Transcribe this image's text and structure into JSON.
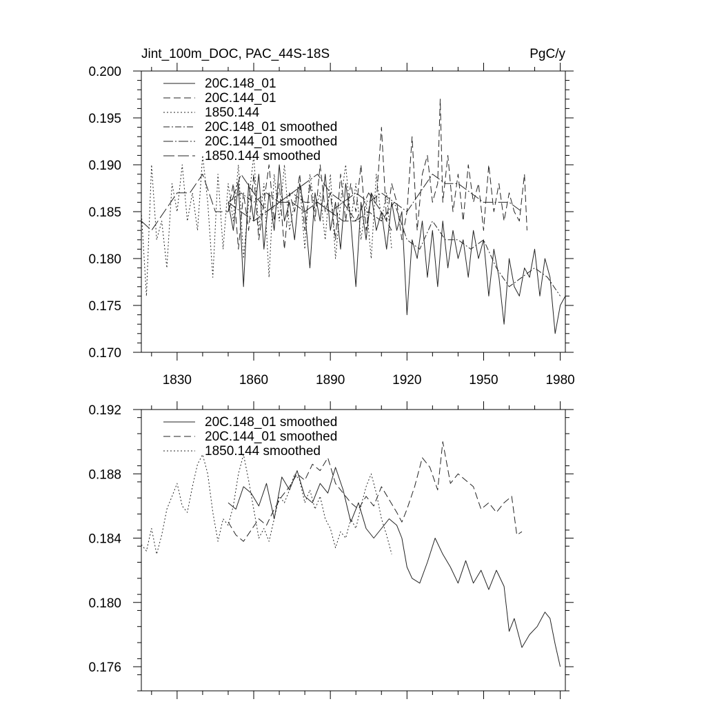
{
  "chart_data": [
    {
      "type": "line",
      "title": "Jint_100m_DOC, PAC_44S-18S",
      "units": "PgC/y",
      "xlabel": "",
      "ylabel": "",
      "xlim": [
        1816,
        1982
      ],
      "ylim": [
        0.17,
        0.2
      ],
      "xticks": [
        1830,
        1860,
        1890,
        1920,
        1950,
        1980
      ],
      "yticks": [
        0.17,
        0.175,
        0.18,
        0.185,
        0.19,
        0.195,
        0.2
      ],
      "ytick_labels": [
        "0.170",
        "0.175",
        "0.180",
        "0.185",
        "0.190",
        "0.195",
        "0.200"
      ],
      "legend": {
        "placement": "top-left"
      },
      "series": [
        {
          "name": "20C.148_01",
          "style": "solid",
          "x": [
            1850,
            1852,
            1854,
            1856,
            1858,
            1860,
            1862,
            1864,
            1866,
            1868,
            1870,
            1872,
            1874,
            1876,
            1878,
            1880,
            1882,
            1884,
            1886,
            1888,
            1890,
            1892,
            1894,
            1896,
            1898,
            1900,
            1902,
            1904,
            1906,
            1908,
            1910,
            1912,
            1914,
            1916,
            1918,
            1920,
            1922,
            1924,
            1926,
            1928,
            1930,
            1932,
            1934,
            1936,
            1938,
            1940,
            1942,
            1944,
            1946,
            1948,
            1950,
            1952,
            1954,
            1956,
            1958,
            1960,
            1962,
            1964,
            1966,
            1968,
            1970,
            1972,
            1974,
            1976,
            1978,
            1980,
            1982
          ],
          "y": [
            0.186,
            0.183,
            0.188,
            0.177,
            0.188,
            0.184,
            0.189,
            0.181,
            0.187,
            0.183,
            0.19,
            0.184,
            0.186,
            0.182,
            0.188,
            0.185,
            0.179,
            0.187,
            0.184,
            0.189,
            0.183,
            0.186,
            0.181,
            0.188,
            0.184,
            0.177,
            0.186,
            0.182,
            0.187,
            0.183,
            0.185,
            0.181,
            0.186,
            0.183,
            0.185,
            0.174,
            0.182,
            0.18,
            0.184,
            0.178,
            0.183,
            0.177,
            0.184,
            0.179,
            0.183,
            0.18,
            0.182,
            0.178,
            0.183,
            0.18,
            0.182,
            0.176,
            0.181,
            0.178,
            0.173,
            0.18,
            0.177,
            0.176,
            0.179,
            0.178,
            0.181,
            0.176,
            0.18,
            0.178,
            0.172,
            0.175,
            0.176
          ]
        },
        {
          "name": "20C.144_01",
          "style": "dashed",
          "x": [
            1850,
            1852,
            1854,
            1856,
            1858,
            1860,
            1862,
            1864,
            1866,
            1868,
            1870,
            1872,
            1874,
            1876,
            1878,
            1880,
            1882,
            1884,
            1886,
            1888,
            1890,
            1892,
            1894,
            1896,
            1898,
            1900,
            1902,
            1904,
            1906,
            1908,
            1910,
            1912,
            1914,
            1916,
            1918,
            1920,
            1922,
            1924,
            1926,
            1928,
            1930,
            1932,
            1933,
            1934,
            1936,
            1938,
            1940,
            1942,
            1944,
            1946,
            1948,
            1950,
            1952,
            1954,
            1956,
            1958,
            1960,
            1962,
            1964,
            1966,
            1967
          ],
          "y": [
            0.185,
            0.188,
            0.181,
            0.187,
            0.183,
            0.189,
            0.182,
            0.186,
            0.19,
            0.184,
            0.188,
            0.181,
            0.187,
            0.185,
            0.189,
            0.183,
            0.188,
            0.184,
            0.19,
            0.185,
            0.187,
            0.182,
            0.189,
            0.184,
            0.188,
            0.185,
            0.19,
            0.183,
            0.187,
            0.186,
            0.194,
            0.184,
            0.188,
            0.186,
            0.182,
            0.185,
            0.193,
            0.183,
            0.189,
            0.191,
            0.186,
            0.188,
            0.197,
            0.186,
            0.191,
            0.185,
            0.189,
            0.184,
            0.19,
            0.186,
            0.188,
            0.183,
            0.19,
            0.185,
            0.188,
            0.184,
            0.187,
            0.185,
            0.184,
            0.189,
            0.183
          ]
        },
        {
          "name": "1850.144",
          "style": "dotted",
          "x": [
            1816,
            1818,
            1820,
            1822,
            1824,
            1826,
            1828,
            1830,
            1832,
            1834,
            1836,
            1838,
            1840,
            1842,
            1844,
            1846,
            1848,
            1850,
            1852,
            1854,
            1856,
            1858,
            1860,
            1862,
            1864,
            1866,
            1868,
            1870,
            1872,
            1874,
            1876,
            1878,
            1880,
            1882,
            1884,
            1886,
            1888,
            1890,
            1892,
            1894,
            1896,
            1898,
            1900,
            1902,
            1904,
            1906,
            1908,
            1910,
            1912,
            1914
          ],
          "y": [
            0.185,
            0.176,
            0.19,
            0.182,
            0.184,
            0.179,
            0.188,
            0.185,
            0.19,
            0.184,
            0.187,
            0.183,
            0.191,
            0.186,
            0.178,
            0.189,
            0.181,
            0.188,
            0.184,
            0.19,
            0.18,
            0.186,
            0.191,
            0.183,
            0.188,
            0.178,
            0.189,
            0.184,
            0.19,
            0.183,
            0.186,
            0.188,
            0.181,
            0.189,
            0.185,
            0.187,
            0.182,
            0.189,
            0.18,
            0.186,
            0.19,
            0.184,
            0.188,
            0.182,
            0.186,
            0.18,
            0.189,
            0.184,
            0.187,
            0.181
          ]
        },
        {
          "name": "20C.148_01 smoothed",
          "style": "dash-dot",
          "x": [
            1850,
            1855,
            1860,
            1865,
            1870,
            1875,
            1880,
            1885,
            1890,
            1895,
            1900,
            1905,
            1910,
            1915,
            1920,
            1925,
            1930,
            1935,
            1940,
            1945,
            1950,
            1955,
            1960,
            1965,
            1970,
            1975,
            1980
          ],
          "y": [
            0.186,
            0.187,
            0.186,
            0.187,
            0.186,
            0.187,
            0.186,
            0.186,
            0.185,
            0.186,
            0.184,
            0.185,
            0.184,
            0.186,
            0.182,
            0.181,
            0.184,
            0.182,
            0.182,
            0.181,
            0.182,
            0.179,
            0.177,
            0.178,
            0.179,
            0.178,
            0.176
          ]
        },
        {
          "name": "20C.144_01 smoothed",
          "style": "long-dash-dot",
          "x": [
            1850,
            1855,
            1860,
            1865,
            1870,
            1875,
            1880,
            1885,
            1890,
            1895,
            1900,
            1905,
            1910,
            1915,
            1920,
            1925,
            1930,
            1935,
            1940,
            1945,
            1950,
            1955,
            1960,
            1965
          ],
          "y": [
            0.186,
            0.185,
            0.184,
            0.185,
            0.186,
            0.187,
            0.188,
            0.189,
            0.187,
            0.186,
            0.187,
            0.186,
            0.187,
            0.186,
            0.185,
            0.187,
            0.189,
            0.188,
            0.188,
            0.187,
            0.186,
            0.186,
            0.186,
            0.185
          ]
        },
        {
          "name": "1850.144 smoothed",
          "style": "long-dash",
          "x": [
            1816,
            1820,
            1825,
            1830,
            1835,
            1840,
            1845,
            1850,
            1855,
            1860,
            1865,
            1870,
            1875,
            1880,
            1885,
            1890,
            1895,
            1900,
            1905,
            1910,
            1914
          ],
          "y": [
            0.184,
            0.183,
            0.185,
            0.187,
            0.187,
            0.189,
            0.185,
            0.185,
            0.189,
            0.187,
            0.185,
            0.186,
            0.186,
            0.185,
            0.186,
            0.185,
            0.184,
            0.184,
            0.187,
            0.185,
            0.183
          ]
        }
      ]
    },
    {
      "type": "line",
      "title": "",
      "xlabel": "",
      "ylabel": "",
      "xlim": [
        1816,
        1982
      ],
      "ylim": [
        0.1745,
        0.192
      ],
      "xticks": [
        1830,
        1860,
        1890,
        1920,
        1950,
        1980
      ],
      "yticks": [
        0.176,
        0.18,
        0.184,
        0.188,
        0.192
      ],
      "ytick_labels": [
        "0.176",
        "0.180",
        "0.184",
        "0.188",
        "0.192"
      ],
      "legend": {
        "placement": "top-left"
      },
      "series": [
        {
          "name": "20C.148_01 smoothed",
          "style": "solid",
          "x": [
            1850,
            1853,
            1856,
            1859,
            1862,
            1865,
            1868,
            1871,
            1874,
            1877,
            1880,
            1883,
            1886,
            1889,
            1892,
            1895,
            1898,
            1901,
            1904,
            1907,
            1910,
            1913,
            1916,
            1918,
            1920,
            1922,
            1925,
            1928,
            1931,
            1934,
            1937,
            1940,
            1943,
            1946,
            1949,
            1952,
            1955,
            1958,
            1960,
            1962,
            1965,
            1968,
            1971,
            1974,
            1976,
            1978,
            1980
          ],
          "y": [
            0.1862,
            0.1858,
            0.1872,
            0.1868,
            0.186,
            0.1874,
            0.1852,
            0.1878,
            0.187,
            0.1882,
            0.1866,
            0.1862,
            0.1874,
            0.1868,
            0.1884,
            0.187,
            0.185,
            0.1862,
            0.1846,
            0.184,
            0.1846,
            0.1852,
            0.1848,
            0.184,
            0.1822,
            0.1815,
            0.1812,
            0.1825,
            0.184,
            0.183,
            0.1822,
            0.1812,
            0.1826,
            0.1812,
            0.182,
            0.1808,
            0.182,
            0.181,
            0.1782,
            0.179,
            0.1772,
            0.178,
            0.1785,
            0.1794,
            0.179,
            0.1774,
            0.176
          ]
        },
        {
          "name": "20C.144_01 smoothed",
          "style": "dashed",
          "x": [
            1850,
            1853,
            1856,
            1859,
            1862,
            1865,
            1868,
            1871,
            1874,
            1877,
            1880,
            1883,
            1886,
            1889,
            1892,
            1895,
            1898,
            1901,
            1904,
            1907,
            1910,
            1913,
            1916,
            1918,
            1920,
            1923,
            1926,
            1929,
            1932,
            1934,
            1937,
            1940,
            1943,
            1946,
            1949,
            1952,
            1955,
            1958,
            1961,
            1963,
            1965
          ],
          "y": [
            0.185,
            0.1842,
            0.1838,
            0.1845,
            0.1852,
            0.1848,
            0.1858,
            0.1866,
            0.1872,
            0.188,
            0.1876,
            0.1886,
            0.1882,
            0.189,
            0.1874,
            0.1868,
            0.1862,
            0.1858,
            0.1866,
            0.186,
            0.1872,
            0.1864,
            0.1856,
            0.185,
            0.1858,
            0.1872,
            0.189,
            0.1884,
            0.187,
            0.19,
            0.1874,
            0.188,
            0.1876,
            0.1872,
            0.1858,
            0.1862,
            0.1856,
            0.1862,
            0.1866,
            0.1842,
            0.1844
          ]
        },
        {
          "name": "1850.144 smoothed",
          "style": "dotted",
          "x": [
            1816,
            1818,
            1820,
            1822,
            1824,
            1826,
            1828,
            1830,
            1832,
            1834,
            1836,
            1838,
            1840,
            1842,
            1844,
            1846,
            1848,
            1850,
            1852,
            1854,
            1856,
            1858,
            1860,
            1862,
            1864,
            1866,
            1868,
            1870,
            1872,
            1874,
            1876,
            1878,
            1880,
            1882,
            1884,
            1886,
            1888,
            1890,
            1892,
            1894,
            1896,
            1898,
            1900,
            1902,
            1904,
            1906,
            1908,
            1910,
            1912,
            1914
          ],
          "y": [
            0.1836,
            0.1832,
            0.1846,
            0.183,
            0.1842,
            0.1858,
            0.1866,
            0.1874,
            0.186,
            0.1856,
            0.1872,
            0.1886,
            0.1892,
            0.188,
            0.1856,
            0.1838,
            0.1852,
            0.1848,
            0.186,
            0.188,
            0.1892,
            0.1876,
            0.1858,
            0.184,
            0.1846,
            0.1838,
            0.1852,
            0.1866,
            0.1862,
            0.187,
            0.188,
            0.1876,
            0.1862,
            0.187,
            0.1858,
            0.1866,
            0.1852,
            0.1846,
            0.1834,
            0.1844,
            0.184,
            0.1852,
            0.1846,
            0.186,
            0.1872,
            0.188,
            0.1868,
            0.1852,
            0.1842,
            0.183
          ]
        }
      ]
    }
  ]
}
